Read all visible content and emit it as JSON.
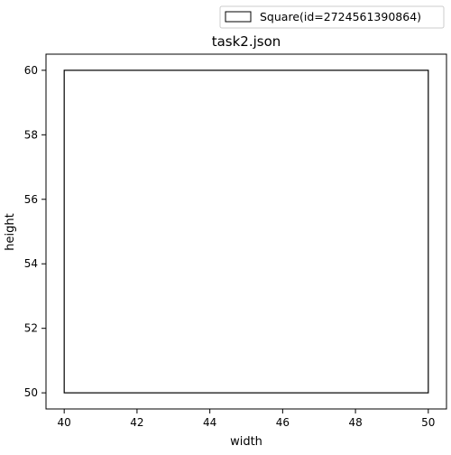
{
  "chart_data": {
    "type": "rectangle",
    "title": "task2.json",
    "xlabel": "width",
    "ylabel": "height",
    "xlim": [
      39.5,
      50.5
    ],
    "ylim": [
      49.5,
      60.5
    ],
    "xticks": [
      40,
      42,
      44,
      46,
      48,
      50
    ],
    "yticks": [
      50,
      52,
      54,
      56,
      58,
      60
    ],
    "grid": false,
    "legend_position": "above-right",
    "series": [
      {
        "name": "Square(id=2724561390864)",
        "shape": "square",
        "x0": 40,
        "y0": 50,
        "width": 10,
        "height": 10,
        "edge_color": "#000000",
        "fill_color": "#ffffff"
      }
    ]
  }
}
